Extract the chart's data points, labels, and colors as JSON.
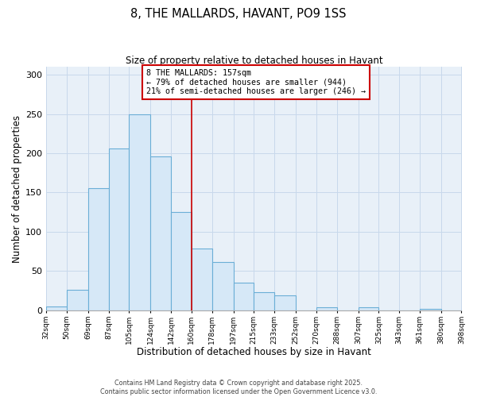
{
  "title": "8, THE MALLARDS, HAVANT, PO9 1SS",
  "subtitle": "Size of property relative to detached houses in Havant",
  "xlabel": "Distribution of detached houses by size in Havant",
  "ylabel": "Number of detached properties",
  "bar_left_edges": [
    32,
    50,
    69,
    87,
    105,
    124,
    142,
    160,
    178,
    197,
    215,
    233,
    252,
    270,
    288,
    307,
    325,
    343,
    361,
    380
  ],
  "bar_widths": [
    18,
    19,
    18,
    18,
    19,
    18,
    18,
    18,
    19,
    18,
    18,
    19,
    18,
    18,
    19,
    18,
    18,
    18,
    19,
    18
  ],
  "bar_heights": [
    5,
    26,
    156,
    206,
    250,
    196,
    125,
    79,
    62,
    35,
    23,
    19,
    0,
    4,
    0,
    4,
    0,
    0,
    2,
    0
  ],
  "bar_color": "#d6e8f7",
  "bar_edge_color": "#6aaed6",
  "xtick_labels": [
    "32sqm",
    "50sqm",
    "69sqm",
    "87sqm",
    "105sqm",
    "124sqm",
    "142sqm",
    "160sqm",
    "178sqm",
    "197sqm",
    "215sqm",
    "233sqm",
    "252sqm",
    "270sqm",
    "288sqm",
    "307sqm",
    "325sqm",
    "343sqm",
    "361sqm",
    "380sqm",
    "398sqm"
  ],
  "ylim": [
    0,
    310
  ],
  "yticks": [
    0,
    50,
    100,
    150,
    200,
    250,
    300
  ],
  "vline_x": 160,
  "vline_color": "#cc0000",
  "annotation_line1": "8 THE MALLARDS: 157sqm",
  "annotation_line2": "← 79% of detached houses are smaller (944)",
  "annotation_line3": "21% of semi-detached houses are larger (246) →",
  "annotation_box_color": "#ffffff",
  "annotation_box_edge_color": "#cc0000",
  "grid_color": "#c8d8eb",
  "background_color": "#ffffff",
  "plot_bg_color": "#e8f0f8",
  "footer_line1": "Contains HM Land Registry data © Crown copyright and database right 2025.",
  "footer_line2": "Contains public sector information licensed under the Open Government Licence v3.0."
}
